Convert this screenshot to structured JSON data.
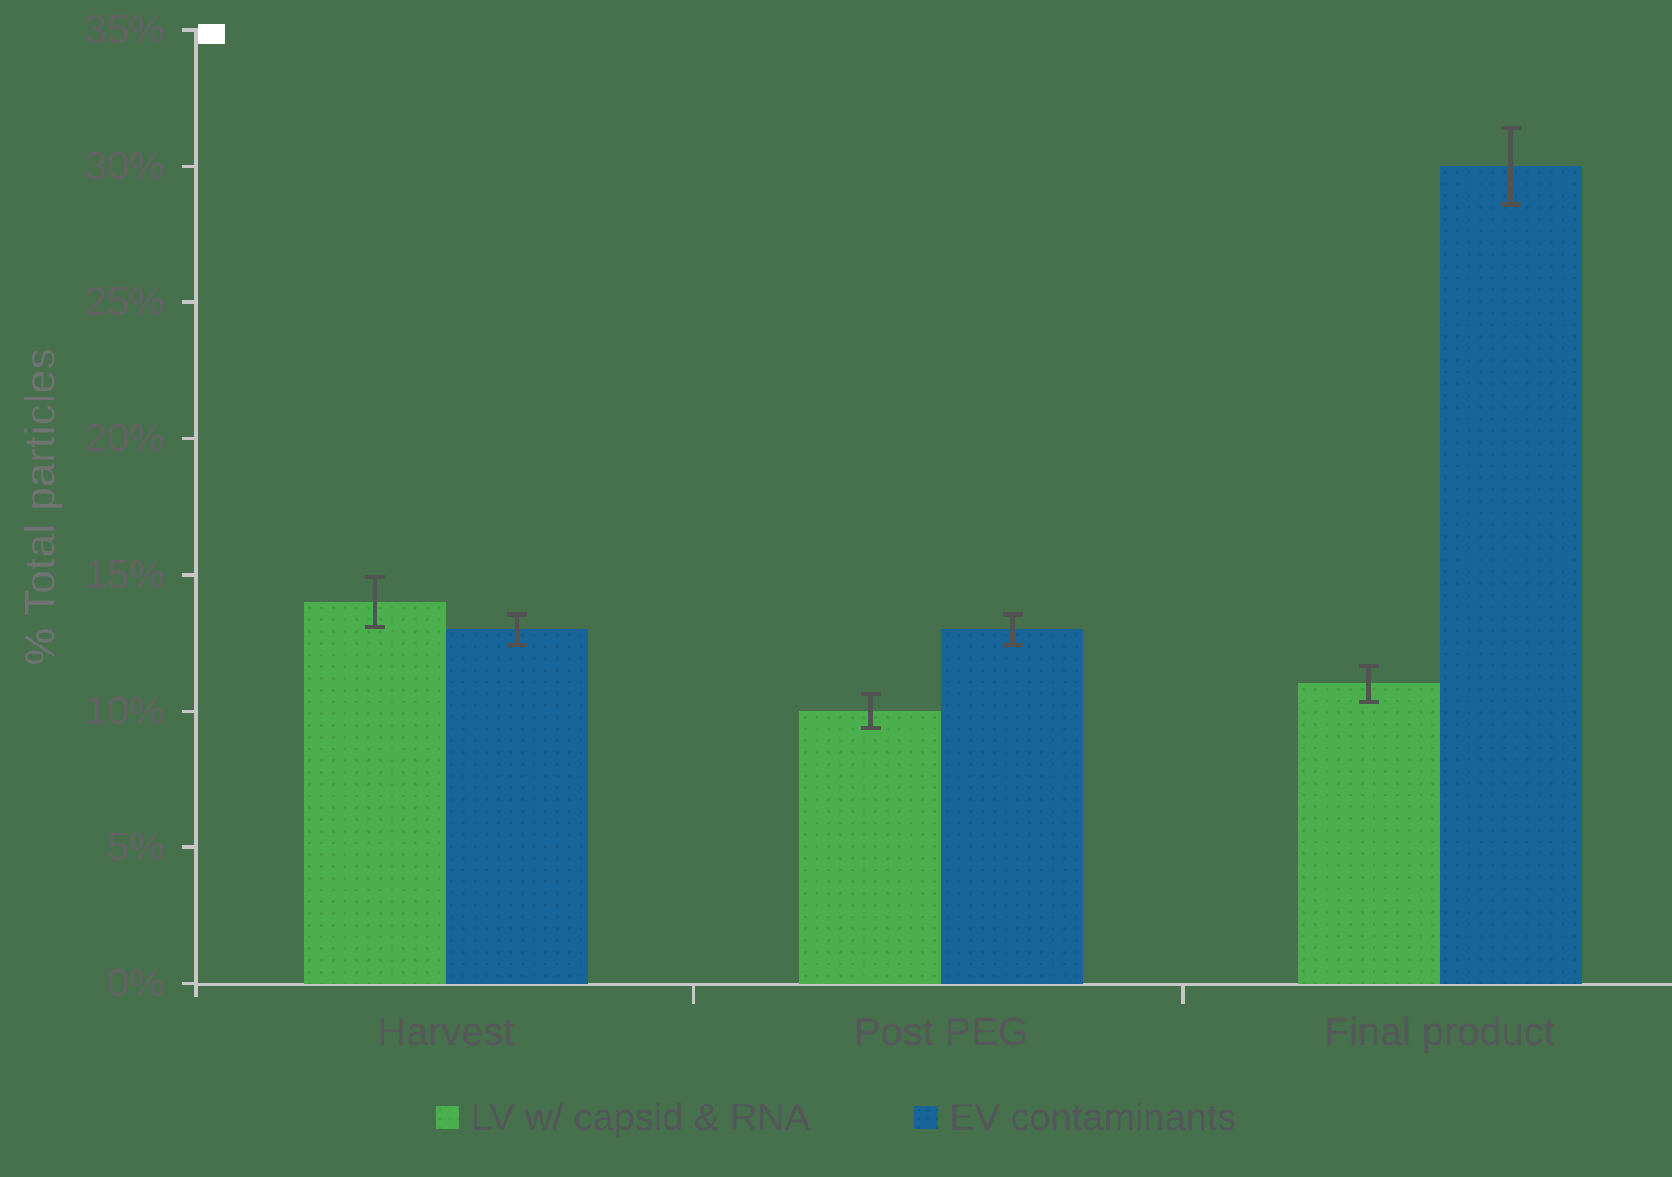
{
  "chart_data": {
    "type": "bar",
    "title": "",
    "ylabel": "% Total particles",
    "ylim": [
      0,
      35
    ],
    "ytick_step": 5,
    "ytick_labels": [
      "0%",
      "5%",
      "10%",
      "15%",
      "20%",
      "25%",
      "30%",
      "35%"
    ],
    "categories": [
      "Harvest",
      "Post PEG",
      "Final product"
    ],
    "series": [
      {
        "key": "lv",
        "name": "LV w/ capsid & RNA",
        "color": "#4CAF4D",
        "values": [
          14,
          10,
          11
        ],
        "errors": [
          1.0,
          0.7,
          0.75
        ]
      },
      {
        "key": "ev",
        "name": "EV contaminants",
        "color": "#176599",
        "values": [
          13,
          13,
          30
        ],
        "errors": [
          0.65,
          0.65,
          1.5
        ]
      }
    ],
    "grid": false,
    "legend_position": "bottom",
    "colors": {
      "background": "#47704D",
      "axis": "#C7C7C7",
      "tick_text": "#636363",
      "category_text": "#565859",
      "legend_text": "#54575A",
      "error_bar": "#535353"
    }
  }
}
